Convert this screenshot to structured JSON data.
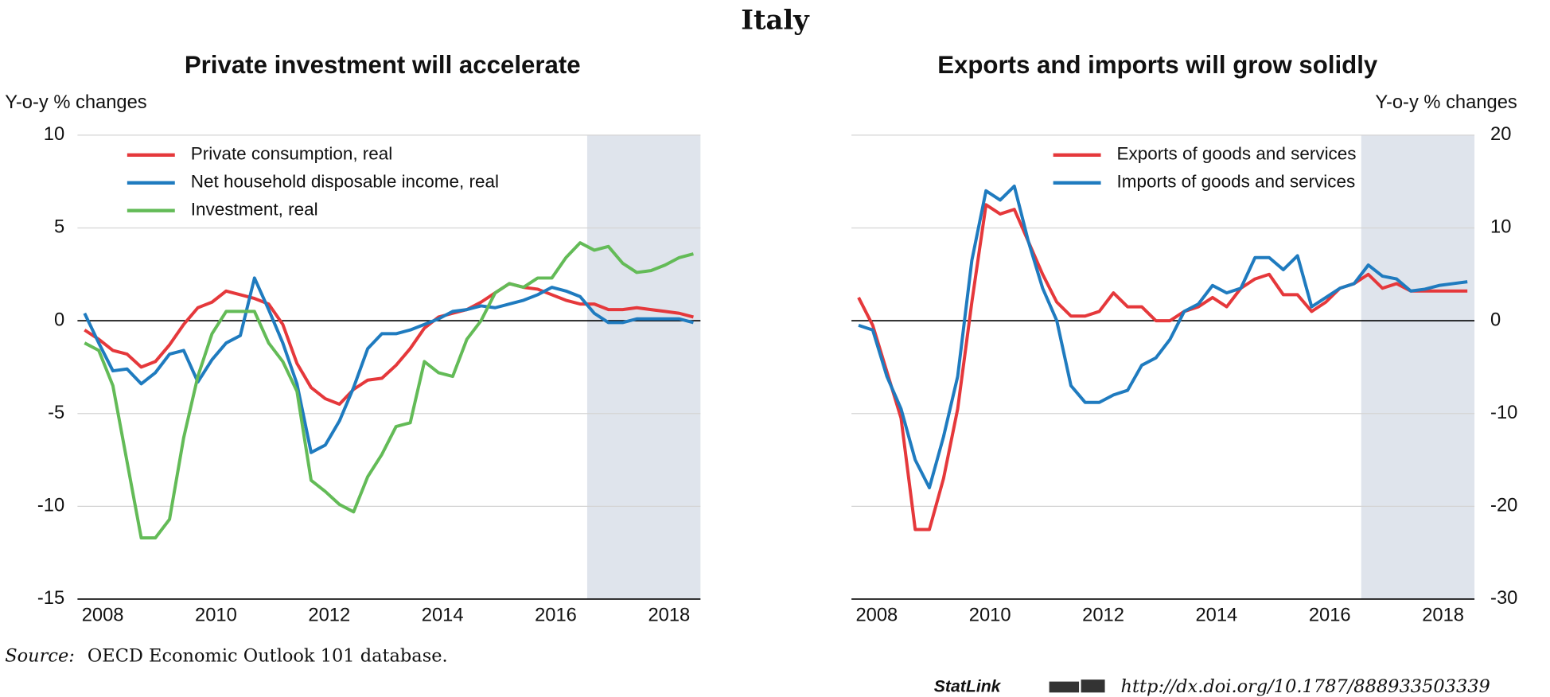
{
  "title": "Italy",
  "source_label": "Source:",
  "source": "OECD Economic Outlook 101 database.",
  "statlink_label": "StatLink",
  "statlink_url": "http://dx.doi.org/10.1787/888933503339",
  "chart_data": [
    {
      "type": "line",
      "title": "Private investment will accelerate",
      "y_label": "Y-o-y % changes",
      "axis_side": "left",
      "legend": "upper left",
      "categories": [
        null,
        "2008",
        null,
        null,
        null,
        null,
        null,
        null,
        null,
        "2010",
        null,
        null,
        null,
        null,
        null,
        null,
        null,
        "2012",
        null,
        null,
        null,
        null,
        null,
        null,
        null,
        "2014",
        null,
        null,
        null,
        null,
        null,
        null,
        null,
        "2016",
        null,
        null,
        null,
        null,
        null,
        null,
        null,
        "2018",
        null,
        null
      ],
      "series": [
        {
          "name": "Private consumption, real",
          "color": "#e5383b",
          "values": [
            -0.5,
            -1,
            -1.6,
            -1.8,
            -2.5,
            -2.2,
            -1.3,
            -0.2,
            0.7,
            1.0,
            1.6,
            1.4,
            1.2,
            0.9,
            -0.2,
            -2.3,
            -3.6,
            -4.2,
            -4.5,
            -3.7,
            -3.2,
            -3.1,
            -2.4,
            -1.5,
            -0.4,
            0.2,
            0.4,
            0.6,
            1.0,
            1.5,
            2.0,
            1.8,
            1.7,
            1.4,
            1.1,
            0.9,
            0.9,
            0.6,
            0.6,
            0.7,
            0.6,
            0.5,
            0.4,
            0.2
          ]
        },
        {
          "name": "Net household disposable income, real",
          "color": "#1f7bbf",
          "values": [
            0.4,
            -1.2,
            -2.7,
            -2.6,
            -3.4,
            -2.8,
            -1.8,
            -1.6,
            -3.3,
            -2.1,
            -1.2,
            -0.8,
            2.3,
            0.6,
            -1.2,
            -3.4,
            -7.1,
            -6.7,
            -5.4,
            -3.6,
            -1.5,
            -0.7,
            -0.7,
            -0.5,
            -0.2,
            0.1,
            0.5,
            0.6,
            0.8,
            0.7,
            0.9,
            1.1,
            1.4,
            1.8,
            1.6,
            1.3,
            0.4,
            -0.1,
            -0.1,
            0.1,
            0.1,
            0.1,
            0.1,
            -0.1
          ]
        },
        {
          "name": "Investment, real",
          "color": "#63bb57",
          "values": [
            -1.2,
            -1.6,
            -3.5,
            -7.6,
            -11.7,
            -11.7,
            -10.7,
            -6.3,
            -3.0,
            -0.7,
            0.5,
            0.5,
            0.5,
            -1.2,
            -2.2,
            -3.8,
            -8.6,
            -9.2,
            -9.9,
            -10.3,
            -8.4,
            -7.2,
            -5.7,
            -5.5,
            -2.2,
            -2.8,
            -3.0,
            -1.0,
            0.0,
            1.5,
            2.0,
            1.8,
            2.3,
            2.3,
            3.4,
            4.2,
            3.8,
            4.0,
            3.1,
            2.6,
            2.7,
            3.0,
            3.4,
            3.6
          ]
        }
      ],
      "ylim": [
        -15,
        10
      ],
      "yticks": [
        -15,
        -10,
        -5,
        0,
        5,
        10
      ],
      "grid": true,
      "shade_start": 36
    },
    {
      "type": "line",
      "title": "Exports and imports will grow solidly",
      "y_label": "Y-o-y % changes",
      "axis_side": "right",
      "legend": "upper center",
      "categories": [
        null,
        "2008",
        null,
        null,
        null,
        null,
        null,
        null,
        null,
        "2010",
        null,
        null,
        null,
        null,
        null,
        null,
        null,
        "2012",
        null,
        null,
        null,
        null,
        null,
        null,
        null,
        "2014",
        null,
        null,
        null,
        null,
        null,
        null,
        null,
        "2016",
        null,
        null,
        null,
        null,
        null,
        null,
        null,
        "2018",
        null,
        null
      ],
      "series": [
        {
          "name": "Exports of goods and services",
          "color": "#e5383b",
          "values": [
            2.5,
            -0.5,
            -5.5,
            -10.5,
            -22.5,
            -22.5,
            -17,
            -9.5,
            2,
            12.5,
            11.5,
            12,
            8.5,
            5,
            2,
            0.5,
            0.5,
            1,
            3,
            1.5,
            1.5,
            0,
            0,
            1,
            1.5,
            2.5,
            1.5,
            3.5,
            4.5,
            5,
            2.8,
            2.8,
            1,
            2,
            3.5,
            4,
            5,
            3.5,
            4,
            3.2,
            3.2,
            3.2,
            3.2,
            3.2
          ]
        },
        {
          "name": "Imports of goods and services",
          "color": "#1f7bbf",
          "values": [
            -0.5,
            -1,
            -6,
            -9.5,
            -15,
            -18,
            -12.5,
            -6,
            6.5,
            14,
            13,
            14.5,
            8.5,
            3.5,
            0,
            -7,
            -8.8,
            -8.8,
            -8,
            -7.5,
            -4.8,
            -4,
            -2,
            1,
            1.8,
            3.8,
            3,
            3.5,
            6.8,
            6.8,
            5.5,
            7,
            1.5,
            2.5,
            3.5,
            4,
            6,
            4.8,
            4.5,
            3.2,
            3.4,
            3.8,
            4,
            4.2
          ]
        }
      ],
      "ylim": [
        -30,
        20
      ],
      "yticks": [
        -30,
        -20,
        -10,
        0,
        10,
        20
      ],
      "grid": true,
      "shade_start": 36
    }
  ]
}
